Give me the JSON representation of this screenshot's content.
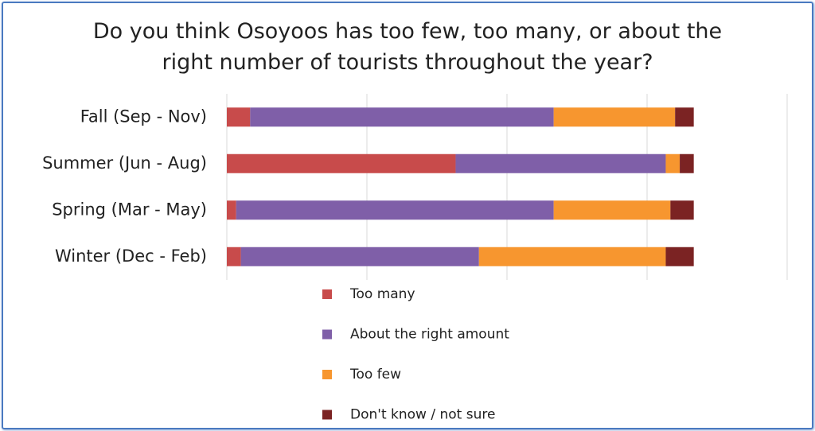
{
  "chart_data": {
    "type": "stacked-bar-horizontal",
    "title": "Do you think Osoyoos has too few, too many, or about the right number of tourists throughout the year?",
    "categories": [
      "Fall (Sep - Nov)",
      "Summer (Jun - Aug)",
      "Spring (Mar - May)",
      "Winter (Dec - Feb)"
    ],
    "series": [
      {
        "name": "Too many",
        "color": "#c84b4b",
        "values": [
          5,
          49,
          2,
          3
        ]
      },
      {
        "name": "About the right amount",
        "color": "#7f5fa8",
        "values": [
          65,
          45,
          68,
          51
        ]
      },
      {
        "name": "Too few",
        "color": "#f7962f",
        "values": [
          26,
          3,
          25,
          40
        ]
      },
      {
        "name": "Don't know / not sure",
        "color": "#7b2323",
        "values": [
          4,
          3,
          5,
          6
        ]
      }
    ],
    "xlim": [
      0,
      120
    ],
    "xticks": [
      0,
      30,
      60,
      90,
      120
    ],
    "grid": true,
    "legend": "bottom"
  }
}
